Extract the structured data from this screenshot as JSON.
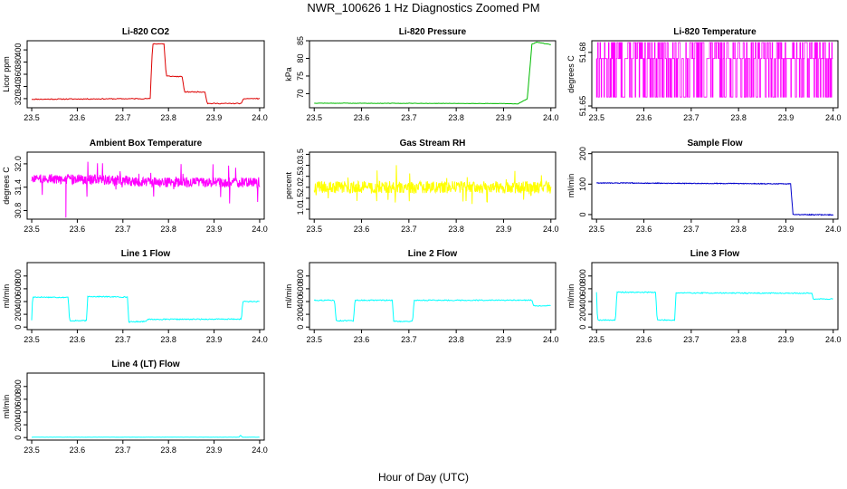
{
  "figure": {
    "title": "NWR_100626  1 Hz Diagnostics Zoomed PM",
    "xlabel": "Hour of Day (UTC)"
  },
  "colors": {
    "co2": "#dd0000",
    "pressure": "#00bb00",
    "temperature": "#ff00ff",
    "ambient": "#ff00ff",
    "rh": "#ffff00",
    "sample_flow": "#0000cc",
    "line_flow": "#00ffff"
  },
  "chart_data": [
    {
      "id": "co2",
      "type": "line",
      "title": "Li-820 CO2",
      "ylabel": "Licor ppm",
      "xlim": [
        23.49,
        24.01
      ],
      "xticks": [
        23.5,
        23.6,
        23.7,
        23.8,
        23.9,
        24.0
      ],
      "ylim": [
        305,
        415
      ],
      "yticks": [
        320,
        340,
        360,
        380,
        400
      ],
      "x": [
        23.5,
        23.76,
        23.765,
        23.79,
        23.795,
        23.83,
        23.835,
        23.88,
        23.885,
        23.96,
        23.965,
        24.0
      ],
      "y": [
        319,
        320,
        410,
        410,
        357,
        356,
        331,
        331,
        312,
        312,
        320,
        320
      ],
      "noise": 0.7,
      "step": 0.002,
      "color_key": "co2",
      "seed": 11
    },
    {
      "id": "pressure",
      "type": "line",
      "title": "Li-820 Pressure",
      "ylabel": "kPa",
      "xlim": [
        23.49,
        24.01
      ],
      "xticks": [
        23.5,
        23.6,
        23.7,
        23.8,
        23.9,
        24.0
      ],
      "ylim": [
        66,
        85
      ],
      "yticks": [
        70,
        75,
        80,
        85
      ],
      "x": [
        23.5,
        23.9,
        23.93,
        23.95,
        23.96,
        23.97,
        24.0
      ],
      "y": [
        67.3,
        67.2,
        67.1,
        68.5,
        84.0,
        84.6,
        83.9
      ],
      "noise": 0.05,
      "step": 0.002,
      "color_key": "pressure",
      "seed": 12
    },
    {
      "id": "temperature",
      "type": "binary",
      "title": "Li-820 Temperature",
      "ylabel": "degrees C",
      "xlim": [
        23.49,
        24.01
      ],
      "xticks": [
        23.5,
        23.6,
        23.7,
        23.8,
        23.9,
        24.0
      ],
      "ylim": [
        51.649,
        51.6865
      ],
      "yticks": [
        51.65,
        51.68
      ],
      "levels": [
        51.655,
        51.6765,
        51.6855
      ],
      "x": [
        23.5,
        24.0
      ],
      "y": [
        51.6765,
        51.6765
      ],
      "step": 0.0012,
      "color_key": "temperature",
      "seed": 13
    },
    {
      "id": "ambient",
      "type": "line",
      "title": "Ambient Box Temperature",
      "ylabel": "degrees C",
      "xlim": [
        23.49,
        24.01
      ],
      "xticks": [
        23.5,
        23.6,
        23.7,
        23.8,
        23.9,
        24.0
      ],
      "ylim": [
        30.58,
        32.3
      ],
      "yticks": [
        30.8,
        31.4,
        32.0
      ],
      "x": [
        23.5,
        23.7,
        23.75,
        24.0
      ],
      "y": [
        31.62,
        31.58,
        31.52,
        31.52
      ],
      "noise": 0.13,
      "spike_prob": 0.04,
      "spike_size": 0.45,
      "step": 0.0007,
      "extra_points": [
        [
          23.575,
          30.62
        ]
      ],
      "color_key": "ambient",
      "seed": 14
    },
    {
      "id": "rh",
      "type": "line",
      "title": "Gas Stream RH",
      "ylabel": "percent",
      "xlim": [
        23.49,
        24.01
      ],
      "xticks": [
        23.5,
        23.6,
        23.7,
        23.8,
        23.9,
        24.0
      ],
      "ylim": [
        0.55,
        3.6
      ],
      "yticks": [
        1.0,
        1.5,
        2.0,
        2.5,
        3.0,
        3.5
      ],
      "x": [
        23.5,
        24.0
      ],
      "y": [
        2.0,
        2.0
      ],
      "noise": 0.28,
      "spike_prob": 0.06,
      "spike_size": 0.9,
      "step": 0.0008,
      "color_key": "rh",
      "seed": 15
    },
    {
      "id": "sample_flow",
      "type": "line",
      "title": "Sample Flow",
      "ylabel": "ml/min",
      "xlim": [
        23.49,
        24.01
      ],
      "xticks": [
        23.5,
        23.6,
        23.7,
        23.8,
        23.9,
        24.0
      ],
      "ylim": [
        -15,
        205
      ],
      "yticks": [
        0,
        100,
        200
      ],
      "x": [
        23.5,
        23.91,
        23.915,
        24.0
      ],
      "y": [
        104,
        101,
        0,
        -1
      ],
      "noise": 1.3,
      "step": 0.001,
      "color_key": "sample_flow",
      "seed": 16
    },
    {
      "id": "line1",
      "type": "line",
      "title": "Line 1 Flow",
      "ylabel": "ml/min",
      "xlim": [
        23.49,
        24.01
      ],
      "xticks": [
        23.5,
        23.6,
        23.7,
        23.8,
        23.9,
        24.0
      ],
      "ylim": [
        -40,
        1010
      ],
      "yticks": [
        0,
        200,
        400,
        600,
        800
      ],
      "x": [
        23.5,
        23.502,
        23.58,
        23.583,
        23.62,
        23.623,
        23.71,
        23.713,
        23.75,
        23.753,
        23.96,
        23.963,
        24.0
      ],
      "y": [
        110,
        470,
        465,
        100,
        100,
        480,
        470,
        80,
        90,
        120,
        125,
        400,
        400
      ],
      "noise": 8,
      "step": 0.0015,
      "color_key": "line_flow",
      "seed": 17
    },
    {
      "id": "line2",
      "type": "line",
      "title": "Line 2 Flow",
      "ylabel": "ml/min",
      "xlim": [
        23.49,
        24.01
      ],
      "xticks": [
        23.5,
        23.6,
        23.7,
        23.8,
        23.9,
        24.0
      ],
      "ylim": [
        -40,
        1010
      ],
      "yticks": [
        0,
        200,
        400,
        600,
        800
      ],
      "x": [
        23.5,
        23.543,
        23.546,
        23.583,
        23.586,
        23.665,
        23.668,
        23.708,
        23.711,
        23.96,
        23.963,
        24.0
      ],
      "y": [
        420,
        420,
        100,
        100,
        420,
        420,
        90,
        90,
        420,
        420,
        330,
        340
      ],
      "noise": 8,
      "step": 0.0015,
      "color_key": "line_flow",
      "seed": 18
    },
    {
      "id": "line3",
      "type": "line",
      "title": "Line 3 Flow",
      "ylabel": "ml/min",
      "xlim": [
        23.49,
        24.01
      ],
      "xticks": [
        23.5,
        23.6,
        23.7,
        23.8,
        23.9,
        24.0
      ],
      "ylim": [
        -40,
        1010
      ],
      "yticks": [
        0,
        200,
        400,
        600,
        800
      ],
      "x": [
        23.5,
        23.502,
        23.54,
        23.543,
        23.625,
        23.628,
        23.665,
        23.668,
        23.955,
        23.958,
        24.0
      ],
      "y": [
        550,
        110,
        110,
        545,
        545,
        110,
        110,
        535,
        530,
        440,
        440
      ],
      "noise": 8,
      "step": 0.0015,
      "color_key": "line_flow",
      "seed": 19
    },
    {
      "id": "line4",
      "type": "line",
      "title": "Line 4 (LT) Flow",
      "ylabel": "ml/min",
      "xlim": [
        23.49,
        24.01
      ],
      "xticks": [
        23.5,
        23.6,
        23.7,
        23.8,
        23.9,
        24.0
      ],
      "ylim": [
        -40,
        1010
      ],
      "yticks": [
        0,
        200,
        400,
        600,
        800
      ],
      "x": [
        23.5,
        23.955,
        23.958,
        23.962,
        24.0
      ],
      "y": [
        5,
        5,
        40,
        5,
        5
      ],
      "noise": 1.5,
      "step": 0.0015,
      "color_key": "line_flow",
      "seed": 20
    }
  ]
}
